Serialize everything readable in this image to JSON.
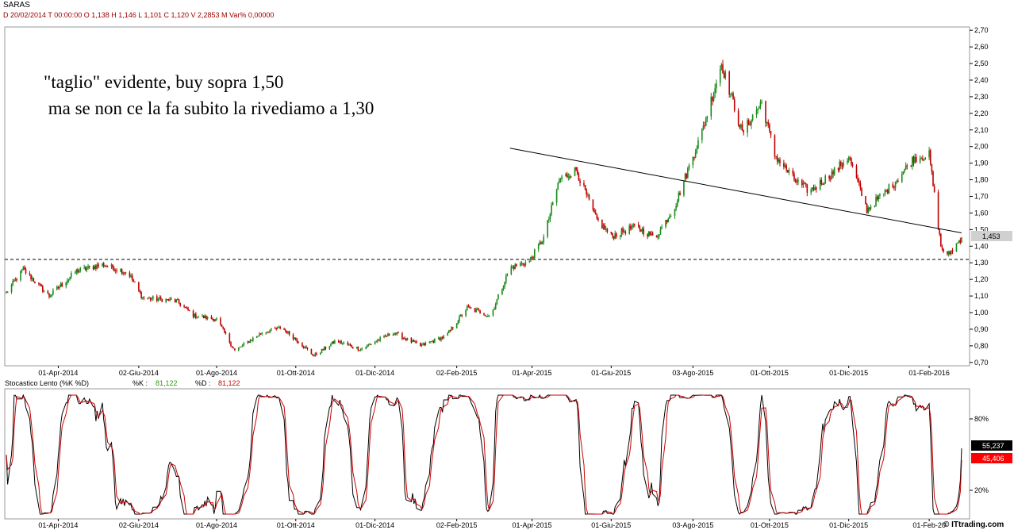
{
  "header": {
    "symbol": "SARAS",
    "info_line": "D 20/02/2014  T 00:00:00   O 1,138   H 1,146   L 1,101   C 1,120   V 2,2853 M   Var% 0,00000"
  },
  "annotation": {
    "line1": "\"taglio\" evidente, buy sopra 1,50",
    "line2": " ma se non ce la fa subito la rivediamo a 1,30"
  },
  "indicator": {
    "title": "Stocastico Lento (%K %D)",
    "k_label": "%K :",
    "k_value": "81,122",
    "d_label": "%D :",
    "d_value": "81,122",
    "badge_k": "55,237",
    "badge_d": "45,406",
    "k_color": "#2a9d00",
    "d_color": "#cc0000"
  },
  "branding": {
    "text": "© ITtrading.com"
  },
  "colors": {
    "up_candle": "#1a8a1a",
    "down_candle": "#c00000",
    "trendline": "#000000",
    "support_line": "#000000",
    "last_price_badge": "#d0d0d0",
    "k_line": "#000000",
    "d_line": "#cc0000",
    "overbought_line": "#00cc00",
    "oversold_line": "#cc00cc"
  },
  "chart_data": [
    {
      "type": "line",
      "subtype": "candlestick",
      "title": "SARAS",
      "y_axis": {
        "ticks": [
          "0,70",
          "0,80",
          "0,90",
          "1,00",
          "1,10",
          "1,20",
          "1,30",
          "1,40",
          "1,50",
          "1,60",
          "1,70",
          "1,80",
          "1,90",
          "2,00",
          "2,10",
          "2,20",
          "2,30",
          "2,40",
          "2,50",
          "2,60",
          "2,70"
        ],
        "range": [
          0.68,
          2.72
        ]
      },
      "x_axis": {
        "ticks": [
          "01-Apr-2014",
          "02-Giu-2014",
          "01-Ago-2014",
          "01-Ott-2014",
          "01-Dic-2014",
          "02-Feb-2015",
          "01-Apr-2015",
          "01-Giu-2015",
          "03-Ago-2015",
          "01-Ott-2015",
          "01-Dic-2015",
          "01-Feb-2016"
        ]
      },
      "last_price": "1,453",
      "support_level": 1.32,
      "trendline": {
        "from": [
          "2015-03-15",
          1.99
        ],
        "to": [
          "2016-02-26",
          1.48
        ]
      },
      "series": [
        {
          "name": "SARAS",
          "key_points": [
            [
              "2014-02-20",
              1.12
            ],
            [
              "2014-03-05",
              1.26
            ],
            [
              "2014-03-25",
              1.1
            ],
            [
              "2014-04-15",
              1.25
            ],
            [
              "2014-05-05",
              1.29
            ],
            [
              "2014-05-25",
              1.24
            ],
            [
              "2014-06-05",
              1.09
            ],
            [
              "2014-07-01",
              1.07
            ],
            [
              "2014-07-15",
              0.98
            ],
            [
              "2014-08-01",
              0.96
            ],
            [
              "2014-08-15",
              0.77
            ],
            [
              "2014-09-05",
              0.88
            ],
            [
              "2014-09-20",
              0.91
            ],
            [
              "2014-10-01",
              0.84
            ],
            [
              "2014-10-15",
              0.74
            ],
            [
              "2014-11-01",
              0.83
            ],
            [
              "2014-11-20",
              0.78
            ],
            [
              "2014-12-15",
              0.88
            ],
            [
              "2015-01-05",
              0.8
            ],
            [
              "2015-01-25",
              0.86
            ],
            [
              "2015-02-10",
              1.03
            ],
            [
              "2015-02-28",
              0.98
            ],
            [
              "2015-03-15",
              1.27
            ],
            [
              "2015-03-30",
              1.31
            ],
            [
              "2015-04-10",
              1.45
            ],
            [
              "2015-04-22",
              1.8
            ],
            [
              "2015-05-05",
              1.86
            ],
            [
              "2015-05-20",
              1.57
            ],
            [
              "2015-06-01",
              1.46
            ],
            [
              "2015-06-20",
              1.52
            ],
            [
              "2015-07-05",
              1.45
            ],
            [
              "2015-07-20",
              1.64
            ],
            [
              "2015-08-01",
              1.9
            ],
            [
              "2015-08-10",
              2.09
            ],
            [
              "2015-08-25",
              2.5
            ],
            [
              "2015-09-10",
              2.08
            ],
            [
              "2015-09-25",
              2.27
            ],
            [
              "2015-10-05",
              1.95
            ],
            [
              "2015-10-20",
              1.8
            ],
            [
              "2015-11-01",
              1.73
            ],
            [
              "2015-11-20",
              1.85
            ],
            [
              "2015-12-01",
              1.94
            ],
            [
              "2015-12-15",
              1.62
            ],
            [
              "2016-01-05",
              1.78
            ],
            [
              "2016-01-20",
              1.93
            ],
            [
              "2016-02-01",
              1.95
            ],
            [
              "2016-02-10",
              1.4
            ],
            [
              "2016-02-15",
              1.34
            ],
            [
              "2016-02-26",
              1.453
            ]
          ]
        }
      ]
    },
    {
      "type": "line",
      "title": "Stocastico Lento (%K %D)",
      "y_axis": {
        "ticks": [
          "20%",
          "80%"
        ],
        "range": [
          0,
          100
        ]
      },
      "x_axis": {
        "ticks": [
          "01-Apr-2014",
          "02-Giu-2014",
          "01-Ago-2014",
          "01-Ott-2014",
          "01-Dic-2014",
          "02-Feb-2015",
          "01-Apr-2015",
          "01-Giu-2015",
          "03-Ago-2015",
          "01-Ott-2015",
          "01-Dic-2015",
          "01-Feb-20"
        ]
      },
      "series": [
        {
          "name": "%K",
          "last_value": 55.237
        },
        {
          "name": "%D",
          "last_value": 45.406
        }
      ]
    }
  ]
}
